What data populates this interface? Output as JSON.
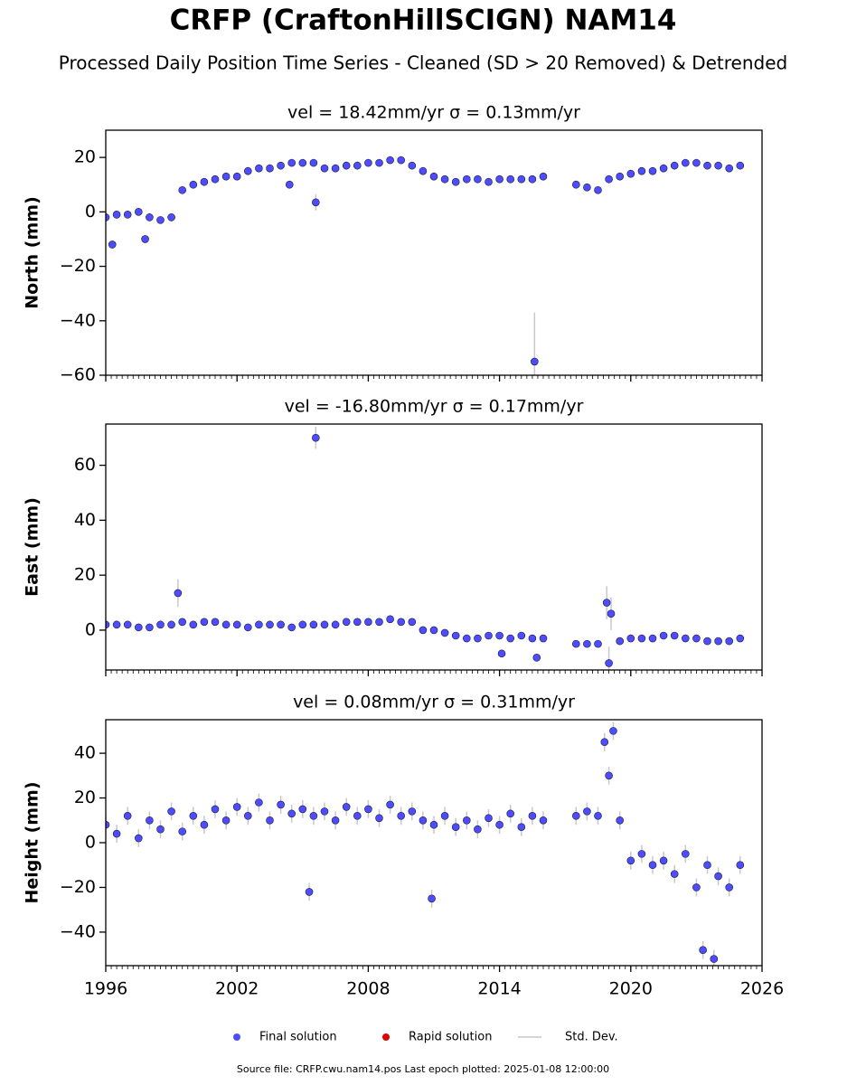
{
  "title": "CRFP (CraftonHillSCIGN) NAM14",
  "subtitle": "Processed Daily Position Time Series - Cleaned (SD > 20 Removed) & Detrended",
  "legend": [
    {
      "name": "Final solution",
      "color": "#4d4dff"
    },
    {
      "name": "Rapid solution",
      "color": "#e00000"
    },
    {
      "name": "Std. Dev.",
      "color": "#c8c8c8"
    }
  ],
  "footer": "Source file: CRFP.cwu.nam14.pos  Last epoch plotted: 2025-01-08 12:00:00",
  "chart_data": [
    {
      "type": "scatter",
      "title": "vel = 18.42mm/yr   σ = 0.13mm/yr",
      "ylabel": "North (mm)",
      "xlim": [
        1996,
        2026
      ],
      "xticks": [
        1996,
        2002,
        2008,
        2014,
        2020,
        2026
      ],
      "ylim": [
        -60,
        30
      ],
      "yticks": [
        {
          "value": -60,
          "label": "−60"
        },
        {
          "value": -40,
          "label": "−40"
        },
        {
          "value": -20,
          "label": "−20"
        },
        0,
        20
      ],
      "x": [
        1996,
        1996.3,
        1996.5,
        1997,
        1997.5,
        1997.8,
        1998,
        1998.5,
        1999,
        1999.5,
        2000,
        2000.5,
        2001,
        2001.5,
        2002,
        2002.5,
        2003,
        2003.5,
        2004,
        2004.4,
        2004.5,
        2005,
        2005.5,
        2005.6,
        2006,
        2006.5,
        2007,
        2007.5,
        2008,
        2008.5,
        2009,
        2009.5,
        2010,
        2010.5,
        2011,
        2011.5,
        2012,
        2012.5,
        2013,
        2013.5,
        2014,
        2014.5,
        2015,
        2015.5,
        2015.6,
        2016,
        2017.5,
        2018,
        2018.5,
        2019,
        2019.5,
        2020,
        2020.5,
        2021,
        2021.5,
        2022,
        2022.5,
        2023,
        2023.5,
        2024,
        2024.5,
        2025
      ],
      "series": [
        {
          "name": "Final solution",
          "color": "#4d4dff",
          "values": [
            -2,
            -12,
            -1,
            -1,
            0,
            -10,
            -2,
            -3,
            -2,
            8,
            10,
            11,
            12,
            13,
            13,
            15,
            16,
            16,
            17,
            10,
            18,
            18,
            18,
            3.5,
            16,
            16,
            17,
            17,
            18,
            18,
            19,
            19,
            17,
            15,
            13,
            12,
            11,
            12,
            12,
            11,
            12,
            12,
            12,
            12,
            -55,
            13,
            10,
            9,
            8,
            12,
            13,
            14,
            15,
            15,
            16,
            17,
            18,
            18,
            17,
            17,
            16,
            17
          ],
          "errors": [
            1.5,
            1.5,
            1.5,
            1.5,
            1.5,
            1.5,
            1.5,
            1.5,
            1.5,
            1.5,
            1.5,
            1.5,
            1.5,
            1.5,
            1.5,
            1.5,
            1.5,
            1.5,
            1.5,
            1.5,
            1.5,
            1.5,
            1.5,
            3,
            1.5,
            1.5,
            1.5,
            1.5,
            1.5,
            1.5,
            1.5,
            1.5,
            1.5,
            1.5,
            1.5,
            1.5,
            1.5,
            1.5,
            1.5,
            1.5,
            1.5,
            1.5,
            1.5,
            1.5,
            18,
            1.5,
            1.5,
            1.5,
            1.5,
            1.5,
            1.5,
            1.5,
            1.5,
            1.5,
            1.5,
            1.5,
            1.5,
            1.5,
            1.5,
            1.5,
            1.5,
            1.5
          ]
        }
      ]
    },
    {
      "type": "scatter",
      "title": "vel = -16.80mm/yr   σ = 0.17mm/yr",
      "ylabel": "East (mm)",
      "xlim": [
        1996,
        2026
      ],
      "xticks": [
        1996,
        2002,
        2008,
        2014,
        2020,
        2026
      ],
      "ylim": [
        -14.5,
        75
      ],
      "yticks": [
        0,
        20,
        40,
        60
      ],
      "x": [
        1996,
        1996.5,
        1997,
        1997.5,
        1998,
        1998.5,
        1999,
        1999.3,
        1999.5,
        2000,
        2000.5,
        2001,
        2001.5,
        2002,
        2002.5,
        2003,
        2003.5,
        2004,
        2004.5,
        2005,
        2005.5,
        2005.6,
        2006,
        2006.5,
        2007,
        2007.5,
        2008,
        2008.5,
        2009,
        2009.5,
        2010,
        2010.5,
        2011,
        2011.5,
        2012,
        2012.5,
        2013,
        2013.5,
        2014,
        2014.1,
        2014.5,
        2015,
        2015.5,
        2015.7,
        2016,
        2017.5,
        2018,
        2018.5,
        2018.9,
        2019,
        2019.1,
        2019.5,
        2020,
        2020.5,
        2021,
        2021.5,
        2022,
        2022.5,
        2023,
        2023.5,
        2024,
        2024.5,
        2025
      ],
      "series": [
        {
          "name": "Final solution",
          "color": "#4d4dff",
          "values": [
            2,
            2,
            2,
            1,
            1,
            2,
            2,
            13.5,
            3,
            2,
            3,
            3,
            2,
            2,
            1,
            2,
            2,
            2,
            1,
            2,
            2,
            70,
            2,
            2,
            3,
            3,
            3,
            3,
            4,
            3,
            3,
            0,
            0,
            -1,
            -2,
            -3,
            -3,
            -2,
            -2,
            -8.5,
            -3,
            -2,
            -3,
            -10,
            -3,
            -5,
            -5,
            -5,
            10,
            -12,
            6,
            -4,
            -3,
            -3,
            -3,
            -2,
            -2,
            -3,
            -3,
            -4,
            -4,
            -4,
            -3
          ],
          "errors": [
            1.2,
            1.2,
            1.2,
            1.2,
            1.2,
            1.2,
            1.2,
            5,
            1.2,
            1.2,
            1.2,
            1.2,
            1.2,
            1.2,
            1.2,
            1.2,
            1.2,
            1.2,
            1.2,
            1.2,
            1.2,
            4,
            1.2,
            1.2,
            1.2,
            1.2,
            1.2,
            1.2,
            1.2,
            1.2,
            1.2,
            1.2,
            1.2,
            1.2,
            1.2,
            1.2,
            1.2,
            1.2,
            1.2,
            1.2,
            1.2,
            1.2,
            1.2,
            1.2,
            1.2,
            1.2,
            1.2,
            1.2,
            6,
            6,
            6,
            1.2,
            1.2,
            1.2,
            1.2,
            1.2,
            1.2,
            1.2,
            1.2,
            1.2,
            1.2,
            1.2,
            1.2
          ]
        }
      ]
    },
    {
      "type": "scatter",
      "title": "vel = 0.08mm/yr   σ = 0.31mm/yr",
      "ylabel": "Height (mm)",
      "xlim": [
        1996,
        2026
      ],
      "xticks": [
        1996,
        2002,
        2008,
        2014,
        2020,
        2026
      ],
      "ylim": [
        -55,
        55
      ],
      "yticks": [
        {
          "value": -40,
          "label": "−40"
        },
        {
          "value": -20,
          "label": "−20"
        },
        0,
        20,
        40
      ],
      "x": [
        1996,
        1996.5,
        1997,
        1997.5,
        1998,
        1998.5,
        1999,
        1999.5,
        2000,
        2000.5,
        2001,
        2001.5,
        2002,
        2002.5,
        2003,
        2003.5,
        2004,
        2004.5,
        2005,
        2005.3,
        2005.5,
        2006,
        2006.5,
        2007,
        2007.5,
        2008,
        2008.5,
        2009,
        2009.5,
        2010,
        2010.5,
        2010.9,
        2011,
        2011.5,
        2012,
        2012.5,
        2013,
        2013.5,
        2014,
        2014.5,
        2015,
        2015.5,
        2016,
        2017.5,
        2018,
        2018.5,
        2018.8,
        2019,
        2019.2,
        2019.5,
        2020,
        2020.5,
        2021,
        2021.5,
        2022,
        2022.5,
        2023,
        2023.3,
        2023.5,
        2023.8,
        2024,
        2024.5,
        2025
      ],
      "series": [
        {
          "name": "Final solution",
          "color": "#4d4dff",
          "values": [
            8,
            4,
            12,
            2,
            10,
            6,
            14,
            5,
            12,
            8,
            15,
            10,
            16,
            12,
            18,
            10,
            17,
            13,
            15,
            -22,
            12,
            14,
            10,
            16,
            12,
            15,
            11,
            17,
            12,
            14,
            10,
            -25,
            8,
            12,
            7,
            10,
            6,
            11,
            8,
            13,
            7,
            12,
            10,
            12,
            14,
            12,
            45,
            30,
            50,
            10,
            -8,
            -5,
            -10,
            -8,
            -14,
            -5,
            -20,
            -48,
            -10,
            -52,
            -15,
            -20,
            -10
          ],
          "errors": [
            4,
            4,
            4,
            4,
            4,
            4,
            4,
            4,
            4,
            4,
            4,
            4,
            4,
            4,
            4,
            4,
            4,
            4,
            4,
            4,
            4,
            4,
            4,
            4,
            4,
            4,
            4,
            4,
            4,
            4,
            4,
            4,
            4,
            4,
            4,
            4,
            4,
            4,
            4,
            4,
            4,
            4,
            4,
            4,
            4,
            4,
            4,
            4,
            4,
            4,
            4,
            4,
            4,
            4,
            4,
            4,
            4,
            4,
            4,
            4,
            4,
            4,
            4
          ]
        }
      ]
    }
  ]
}
